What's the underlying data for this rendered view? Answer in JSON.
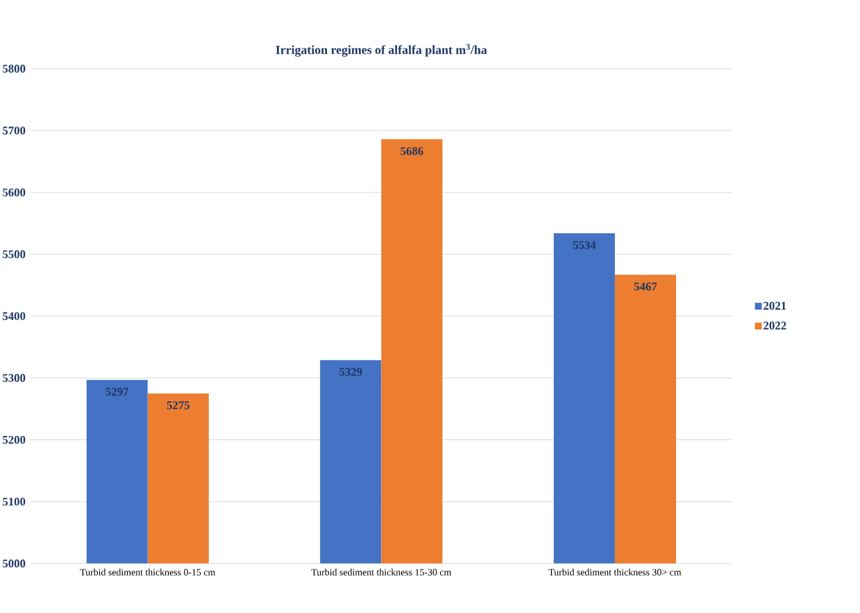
{
  "chart_data": {
    "type": "bar",
    "title": "Irrigation regimes of alfalfa plant m$^{3}$/ha",
    "categories": [
      "Turbid sediment thickness 0-15 cm",
      "Turbid sediment thickness 15-30 cm",
      "Turbid sediment thickness 30> cm"
    ],
    "series": [
      {
        "name": "2021",
        "color": "#4472c4",
        "values": [
          5297,
          5329,
          5534
        ]
      },
      {
        "name": "2022",
        "color": "#ed7d31",
        "values": [
          5275,
          5686,
          5467
        ]
      }
    ],
    "ylim": [
      5000,
      5800
    ],
    "yticks": [
      5000,
      5100,
      5200,
      5300,
      5400,
      5500,
      5600,
      5700,
      5800
    ],
    "grid": "y",
    "legend": "right",
    "data_labels": true
  }
}
